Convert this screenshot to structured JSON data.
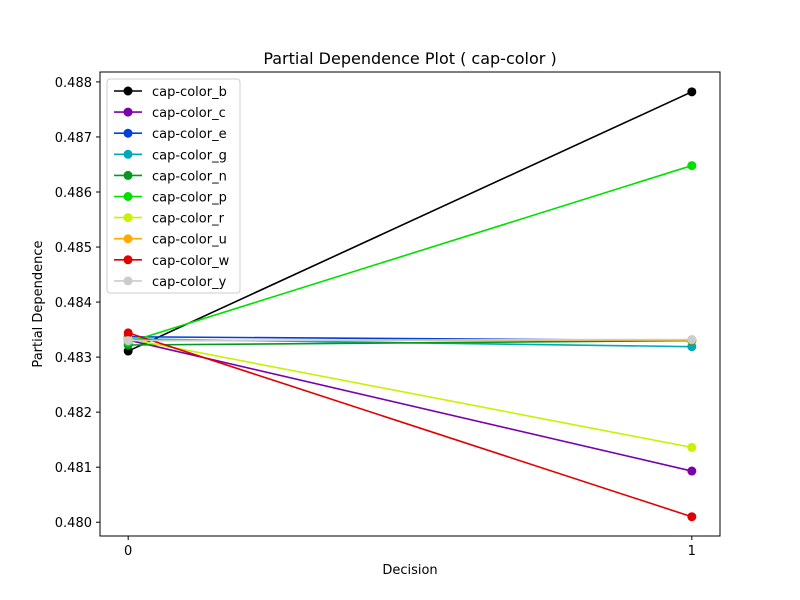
{
  "chart_data": {
    "type": "line",
    "title": "Partial Dependence Plot ( cap-color )",
    "xlabel": "Decision",
    "ylabel": "Partial Dependence",
    "x": [
      0,
      1
    ],
    "x_ticks": [
      "0",
      "1"
    ],
    "y_ticks": [
      "0.480",
      "0.481",
      "0.482",
      "0.483",
      "0.484",
      "0.485",
      "0.486",
      "0.487",
      "0.488"
    ],
    "ylim": [
      0.47975,
      0.48818
    ],
    "xlim": [
      -0.05,
      1.05
    ],
    "legend_position": "upper-left",
    "grid": false,
    "series": [
      {
        "name": "cap-color_b",
        "color": "#000000",
        "values": [
          0.48311,
          0.48782
        ]
      },
      {
        "name": "cap-color_c",
        "color": "#7a00aa",
        "values": [
          0.48331,
          0.48093
        ]
      },
      {
        "name": "cap-color_e",
        "color": "#0040e0",
        "values": [
          0.48337,
          0.4833
        ]
      },
      {
        "name": "cap-color_g",
        "color": "#00a8b8",
        "values": [
          0.48333,
          0.48319
        ]
      },
      {
        "name": "cap-color_n",
        "color": "#009a20",
        "values": [
          0.48322,
          0.4833
        ]
      },
      {
        "name": "cap-color_p",
        "color": "#00e000",
        "values": [
          0.48327,
          0.48648
        ]
      },
      {
        "name": "cap-color_r",
        "color": "#ccf000",
        "values": [
          0.48333,
          0.48136
        ]
      },
      {
        "name": "cap-color_u",
        "color": "#ffaa00",
        "values": [
          0.4833,
          0.48331
        ]
      },
      {
        "name": "cap-color_w",
        "color": "#e00000",
        "values": [
          0.48344,
          0.4801
        ]
      },
      {
        "name": "cap-color_y",
        "color": "#cccccc",
        "values": [
          0.4833,
          0.48332
        ]
      }
    ]
  }
}
